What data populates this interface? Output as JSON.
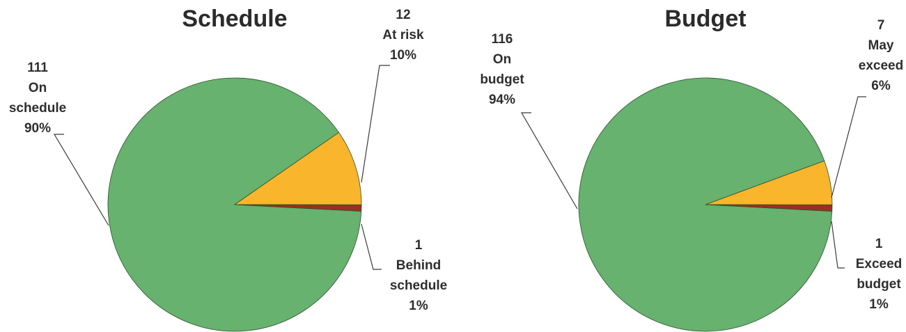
{
  "chart_data": [
    {
      "type": "pie",
      "title": "Schedule",
      "slices": [
        {
          "value": 111,
          "percent": "90%",
          "lines": [
            "111",
            "On",
            "schedule",
            "90%"
          ],
          "color": "#66b26e"
        },
        {
          "value": 12,
          "percent": "10%",
          "lines": [
            "12",
            "At risk",
            "10%"
          ],
          "color": "#f9b52b"
        },
        {
          "value": 1,
          "percent": "1%",
          "lines": [
            "1",
            "Behind",
            "schedule",
            "1%"
          ],
          "color": "#9c2f22"
        }
      ]
    },
    {
      "type": "pie",
      "title": "Budget",
      "slices": [
        {
          "value": 116,
          "percent": "94%",
          "lines": [
            "116",
            "On",
            "budget",
            "94%"
          ],
          "color": "#66b26e"
        },
        {
          "value": 7,
          "percent": "6%",
          "lines": [
            "7",
            "May",
            "exceed",
            "6%"
          ],
          "color": "#f9b52b"
        },
        {
          "value": 1,
          "percent": "1%",
          "lines": [
            "1",
            "Exceed",
            "budget",
            "1%"
          ],
          "color": "#9c2f22"
        }
      ]
    }
  ]
}
